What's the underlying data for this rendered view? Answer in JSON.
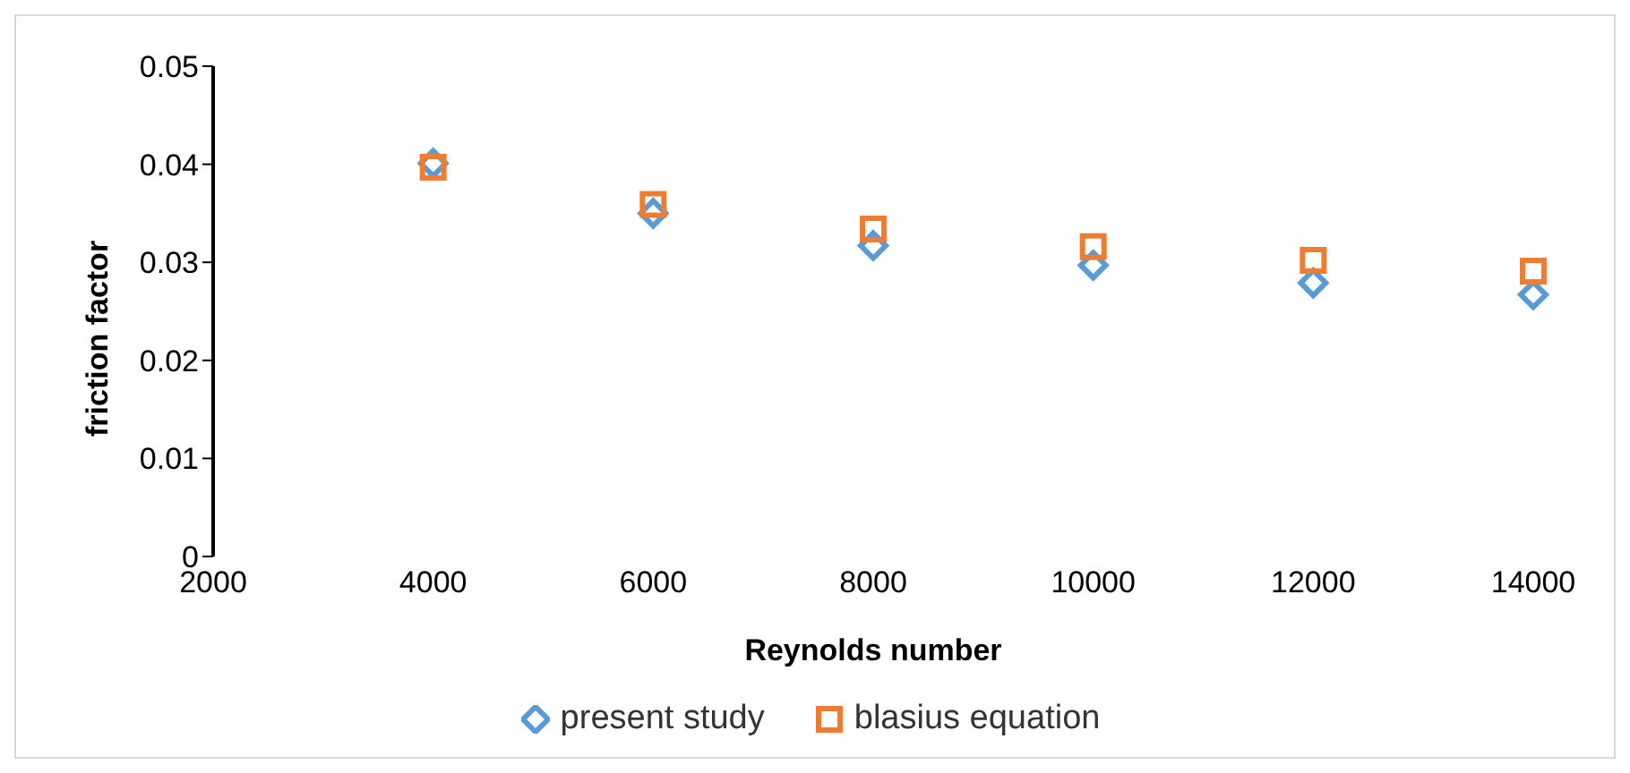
{
  "chart_data": {
    "type": "scatter",
    "xlabel": "Reynolds number",
    "ylabel": "friction factor",
    "x": [
      4000,
      6000,
      8000,
      10000,
      12000,
      14000
    ],
    "series": [
      {
        "name": "present study",
        "color": "#5b9bd5",
        "marker": "diamond",
        "values": [
          0.0401,
          0.035,
          0.0317,
          0.0297,
          0.0279,
          0.0267
        ]
      },
      {
        "name": "blasius equation",
        "color": "#ed7d31",
        "marker": "square",
        "values": [
          0.0397,
          0.0359,
          0.0334,
          0.0316,
          0.0302,
          0.0291
        ]
      }
    ],
    "xlim": [
      2000,
      14000
    ],
    "xticks": [
      2000,
      4000,
      6000,
      8000,
      10000,
      12000,
      14000
    ],
    "ylim": [
      0,
      0.05
    ],
    "yticks": [
      0,
      0.01,
      0.02,
      0.03,
      0.04,
      0.05
    ],
    "grid": false,
    "legend": "bottom"
  }
}
